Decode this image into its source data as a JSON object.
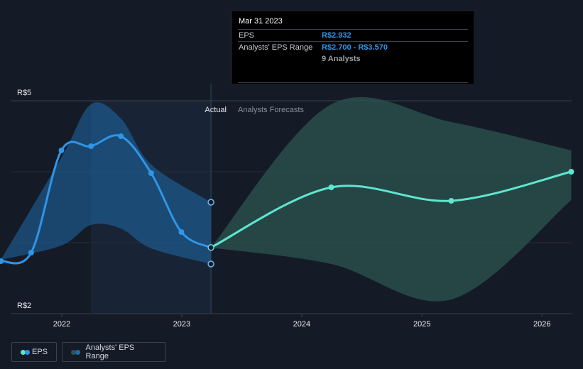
{
  "chart_data": {
    "type": "line",
    "y_axis": {
      "ticks": [
        "R$5",
        "R$2"
      ],
      "ylim": [
        2,
        5
      ]
    },
    "x_axis": {
      "ticks": [
        "2022",
        "2023",
        "2024",
        "2025",
        "2026"
      ]
    },
    "section_labels": {
      "actual": "Actual",
      "forecast": "Analysts Forecasts"
    },
    "series": [
      {
        "name": "EPS",
        "color": "#2f95e8",
        "points": [
          {
            "x": "2021-06-30",
            "y": 2.74
          },
          {
            "x": "2021-09-30",
            "y": 2.86
          },
          {
            "x": "2021-12-31",
            "y": 4.3
          },
          {
            "x": "2022-03-31",
            "y": 4.36
          },
          {
            "x": "2022-06-30",
            "y": 4.5
          },
          {
            "x": "2022-09-30",
            "y": 3.98
          },
          {
            "x": "2022-12-31",
            "y": 3.15
          },
          {
            "x": "2023-03-31",
            "y": 2.932
          }
        ]
      },
      {
        "name": "EPS forecast",
        "color": "#5ee6cf",
        "points": [
          {
            "x": "2023-03-31",
            "y": 2.932
          },
          {
            "x": "2024-03-31",
            "y": 3.78
          },
          {
            "x": "2025-03-31",
            "y": 3.59
          },
          {
            "x": "2026-03-31",
            "y": 4.0
          }
        ]
      }
    ],
    "actual_range_band": {
      "color": "#1f6aa8",
      "upper": [
        {
          "x": "2021-06-30",
          "y": 2.76
        },
        {
          "x": "2021-12-31",
          "y": 4.2
        },
        {
          "x": "2022-03-31",
          "y": 4.95
        },
        {
          "x": "2022-06-30",
          "y": 4.75
        },
        {
          "x": "2022-09-30",
          "y": 4.1
        },
        {
          "x": "2023-03-31",
          "y": 3.57
        }
      ],
      "lower": [
        {
          "x": "2021-06-30",
          "y": 2.76
        },
        {
          "x": "2021-12-31",
          "y": 2.96
        },
        {
          "x": "2022-03-31",
          "y": 3.25
        },
        {
          "x": "2022-06-30",
          "y": 3.2
        },
        {
          "x": "2022-09-30",
          "y": 2.92
        },
        {
          "x": "2023-03-31",
          "y": 2.7
        }
      ]
    },
    "forecast_range_band": {
      "color": "#2c5652",
      "upper": [
        {
          "x": "2023-03-31",
          "y": 2.93
        },
        {
          "x": "2024-03-31",
          "y": 4.95
        },
        {
          "x": "2025-03-31",
          "y": 4.7
        },
        {
          "x": "2026-03-31",
          "y": 4.3
        }
      ],
      "lower": [
        {
          "x": "2023-03-31",
          "y": 2.93
        },
        {
          "x": "2024-03-31",
          "y": 2.7
        },
        {
          "x": "2025-03-31",
          "y": 2.2
        },
        {
          "x": "2026-03-31",
          "y": 3.6
        }
      ]
    },
    "range_endpoints": [
      {
        "x": "2023-03-31",
        "y": 3.57
      },
      {
        "x": "2023-03-31",
        "y": 2.7
      }
    ],
    "legend": [
      "EPS",
      "Analysts' EPS Range"
    ],
    "legend_position": "bottom-left"
  },
  "tooltip": {
    "date": "Mar 31 2023",
    "rows": [
      {
        "label": "EPS",
        "value": "R$2.932"
      },
      {
        "label": "Analysts' EPS Range",
        "value": "R$2.700 - R$3.570"
      },
      {
        "label": "",
        "value": "9 Analysts"
      }
    ]
  },
  "legend": {
    "eps_label": "EPS",
    "range_label": "Analysts' EPS Range",
    "eps_colors": [
      "#5ee6cf",
      "#2f95e8"
    ],
    "range_colors": [
      "#2c5652",
      "#1f6aa8"
    ]
  }
}
